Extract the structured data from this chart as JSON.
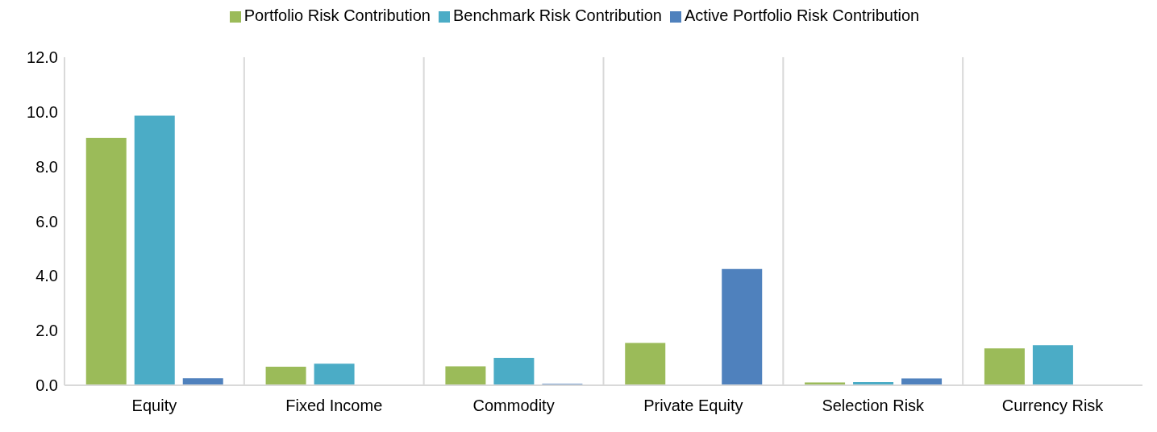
{
  "chart_data": {
    "type": "bar",
    "categories": [
      "Equity",
      "Fixed Income",
      "Commodity",
      "Private Equity",
      "Selection Risk",
      "Currency Risk"
    ],
    "series": [
      {
        "name": "Portfolio Risk Contribution",
        "color": "#9bbb59",
        "values": [
          9.05,
          0.68,
          0.69,
          1.55,
          0.1,
          1.35
        ]
      },
      {
        "name": "Benchmark Risk Contribution",
        "color": "#4bacc6",
        "values": [
          9.86,
          0.79,
          1.0,
          null,
          0.12,
          1.47
        ]
      },
      {
        "name": "Active Portfolio Risk Contribution",
        "color": "#4f81bd",
        "values": [
          0.26,
          null,
          0.05,
          4.25,
          0.25,
          null
        ]
      }
    ],
    "ylim": [
      0,
      12
    ],
    "yticks": [
      {
        "value": 0,
        "label": "0.0"
      },
      {
        "value": 2,
        "label": "2.0"
      },
      {
        "value": 4,
        "label": "4.0"
      },
      {
        "value": 6,
        "label": "6.0"
      },
      {
        "value": 8,
        "label": "8.0"
      },
      {
        "value": 10,
        "label": "10.0"
      },
      {
        "value": 12,
        "label": "12.0"
      }
    ],
    "grid": "x",
    "legend": "top"
  }
}
